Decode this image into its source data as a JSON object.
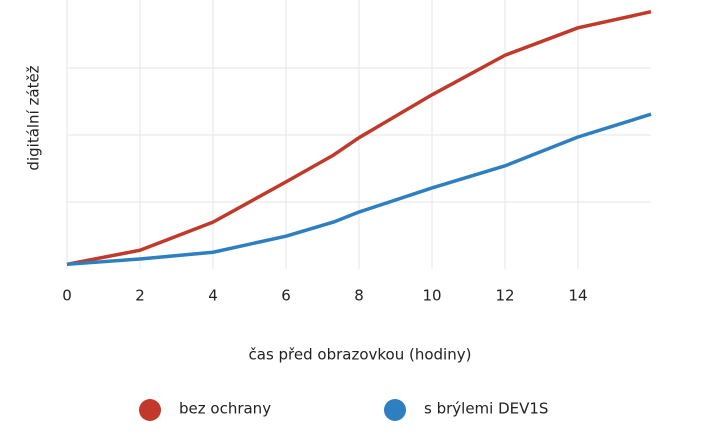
{
  "chart_data": {
    "type": "line",
    "x_label": "čas před obrazovkou (hodiny)",
    "y_label": "digitální zátěž",
    "x": [
      0,
      2,
      4,
      6,
      7.3,
      8,
      10,
      12,
      14,
      16
    ],
    "series": [
      {
        "name": "bez ochrany",
        "color": "#c0392b",
        "values": [
          0.07,
          0.28,
          0.7,
          1.3,
          1.7,
          1.96,
          2.6,
          3.19,
          3.6,
          3.84
        ]
      },
      {
        "name": "s brýlemi DEV1S",
        "color": "#2e7fc0",
        "values": [
          0.07,
          0.15,
          0.25,
          0.49,
          0.7,
          0.85,
          1.21,
          1.54,
          1.97,
          2.31
        ]
      }
    ],
    "xlim": [
      0,
      16
    ],
    "xticks": [
      0,
      2,
      4,
      6,
      8,
      10,
      12,
      14
    ],
    "ylim": [
      0,
      4
    ],
    "yticks": [
      1,
      2,
      3
    ],
    "y_tick_labels": false,
    "grid": true
  }
}
